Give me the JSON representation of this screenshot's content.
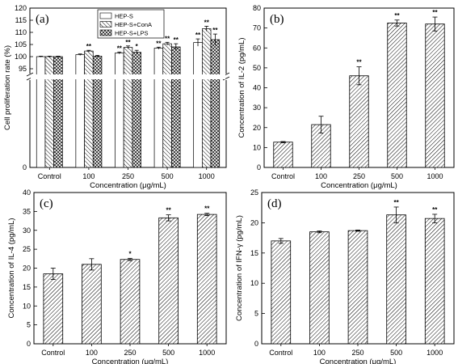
{
  "chart_data": [
    {
      "type": "bar",
      "panel_label": "(a)",
      "categories": [
        "Control",
        "100",
        "250",
        "500",
        "1000"
      ],
      "xlabel": "Concentration (μg/mL)",
      "ylabel": "Cell proliferation rate (%)",
      "y_break": true,
      "ylim_lower": [
        0,
        10
      ],
      "ylim_upper": [
        95,
        120
      ],
      "yticks_lower": [
        "0"
      ],
      "yticks_upper": [
        "95",
        "100",
        "105",
        "110",
        "115",
        "120"
      ],
      "legend": {
        "position": "top-center",
        "entries": [
          "HEP-S",
          "HEP-S+ConA",
          "HEP-S+LPS"
        ]
      },
      "series": [
        {
          "name": "HEP-S",
          "values": [
            100,
            100.8,
            101.5,
            103.5,
            105.8
          ],
          "errors": [
            0.2,
            0.3,
            0.4,
            0.4,
            1.5
          ],
          "sig": [
            "",
            "",
            "**",
            "**",
            "**"
          ]
        },
        {
          "name": "HEP-S+ConA",
          "values": [
            100,
            102.3,
            103.8,
            105.3,
            111.5
          ],
          "errors": [
            0.2,
            0.3,
            0.6,
            0.6,
            1.0
          ],
          "sig": [
            "",
            "**",
            "**",
            "**",
            "**"
          ]
        },
        {
          "name": "HEP-S+LPS",
          "values": [
            100,
            100.2,
            101.8,
            104.0,
            107.0
          ],
          "errors": [
            0.2,
            0.3,
            0.8,
            1.3,
            2.3
          ],
          "sig": [
            "",
            "",
            "*",
            "**",
            "**"
          ]
        }
      ]
    },
    {
      "type": "bar",
      "panel_label": "(b)",
      "categories": [
        "Control",
        "100",
        "250",
        "500",
        "1000"
      ],
      "xlabel": "Concentration (μg/mL)",
      "ylabel": "Concentration of IL-2 (pg/mL)",
      "ylim": [
        0,
        80
      ],
      "yticks": [
        "0",
        "10",
        "20",
        "30",
        "40",
        "50",
        "60",
        "70",
        "80"
      ],
      "values": [
        12.7,
        21.5,
        46,
        72.5,
        72
      ],
      "errors": [
        0.3,
        4.2,
        4.5,
        1.5,
        3.5
      ],
      "sig": [
        "",
        "",
        "**",
        "**",
        "**"
      ]
    },
    {
      "type": "bar",
      "panel_label": "(c)",
      "categories": [
        "Control",
        "100",
        "250",
        "500",
        "1000"
      ],
      "xlabel": "Concentration (μg/mL)",
      "ylabel": "Concentration of IL-4 (pg/mL)",
      "ylim": [
        0,
        40
      ],
      "yticks": [
        "0",
        "5",
        "10",
        "15",
        "20",
        "25",
        "30",
        "35",
        "40"
      ],
      "values": [
        18.5,
        21,
        22.3,
        33.3,
        34.2
      ],
      "errors": [
        1.5,
        1.5,
        0.3,
        0.8,
        0.3
      ],
      "sig": [
        "",
        "",
        "*",
        "**",
        "**"
      ]
    },
    {
      "type": "bar",
      "panel_label": "(d)",
      "categories": [
        "Control",
        "100",
        "250",
        "500",
        "1000"
      ],
      "xlabel": "Concentration (μg/mL)",
      "ylabel": "Concentration of IFN-γ (pg/mL)",
      "ylim": [
        0,
        25
      ],
      "yticks": [
        "0",
        "5",
        "10",
        "15",
        "20",
        "25"
      ],
      "values": [
        17,
        18.5,
        18.7,
        21.3,
        20.7
      ],
      "errors": [
        0.4,
        0.15,
        0.1,
        1.3,
        0.7
      ],
      "sig": [
        "",
        "",
        "",
        "**",
        "**"
      ]
    }
  ]
}
